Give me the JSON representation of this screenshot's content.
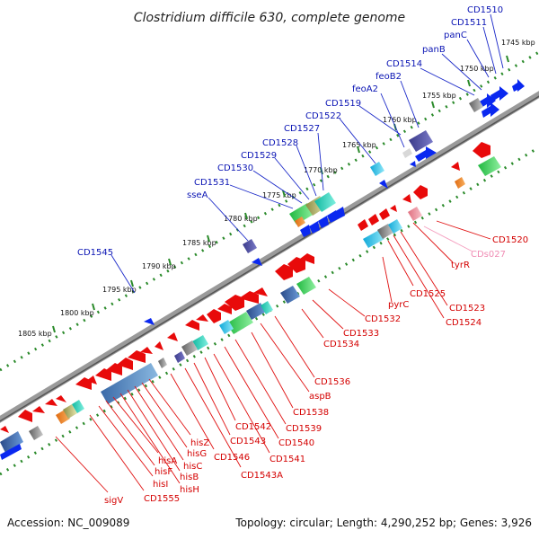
{
  "title": "Clostridium difficile 630, complete genome",
  "footer": {
    "accession": "Accession: NC_009089",
    "summary": "Topology: circular; Length: 4,290,252 bp; Genes: 3,926"
  },
  "ticks": [
    "1745 kbp",
    "1750 kbp",
    "1755 kbp",
    "1760 kbp",
    "1765 kbp",
    "1770 kbp",
    "1775 kbp",
    "1780 kbp",
    "1785 kbp",
    "1790 kbp",
    "1795 kbp",
    "1800 kbp",
    "1805 kbp"
  ],
  "top_labels": [
    "CD1510",
    "CD1511",
    "panC",
    "panB",
    "CD1514",
    "feoB2",
    "feoA2",
    "CD1519",
    "CD1522",
    "CD1527",
    "CD1528",
    "CD1529",
    "CD1530",
    "CD1531",
    "sseA",
    "CD1545"
  ],
  "bottom_labels": [
    "CD1520",
    "CDs027",
    "tyrR",
    "CD1523",
    "CD1524",
    "CD1525",
    "pyrC",
    "CD1532",
    "CD1533",
    "CD1534",
    "CD1536",
    "aspB",
    "CD1538",
    "CD1539",
    "CD1540",
    "CD1541",
    "CD1542",
    "CD1543",
    "CD1543A",
    "CD1546",
    "hisZ",
    "hisG",
    "hisC",
    "hisB",
    "hisH",
    "hisA",
    "hisF",
    "hisI",
    "CD1555",
    "sigV"
  ],
  "colors": {
    "backbone": "#8a8a8a",
    "track_dots": "#2a8a2a",
    "forward_genes": "#0a28f0",
    "reverse_genes": "#e80a0a",
    "rna_gene": "#f0a0c0"
  }
}
